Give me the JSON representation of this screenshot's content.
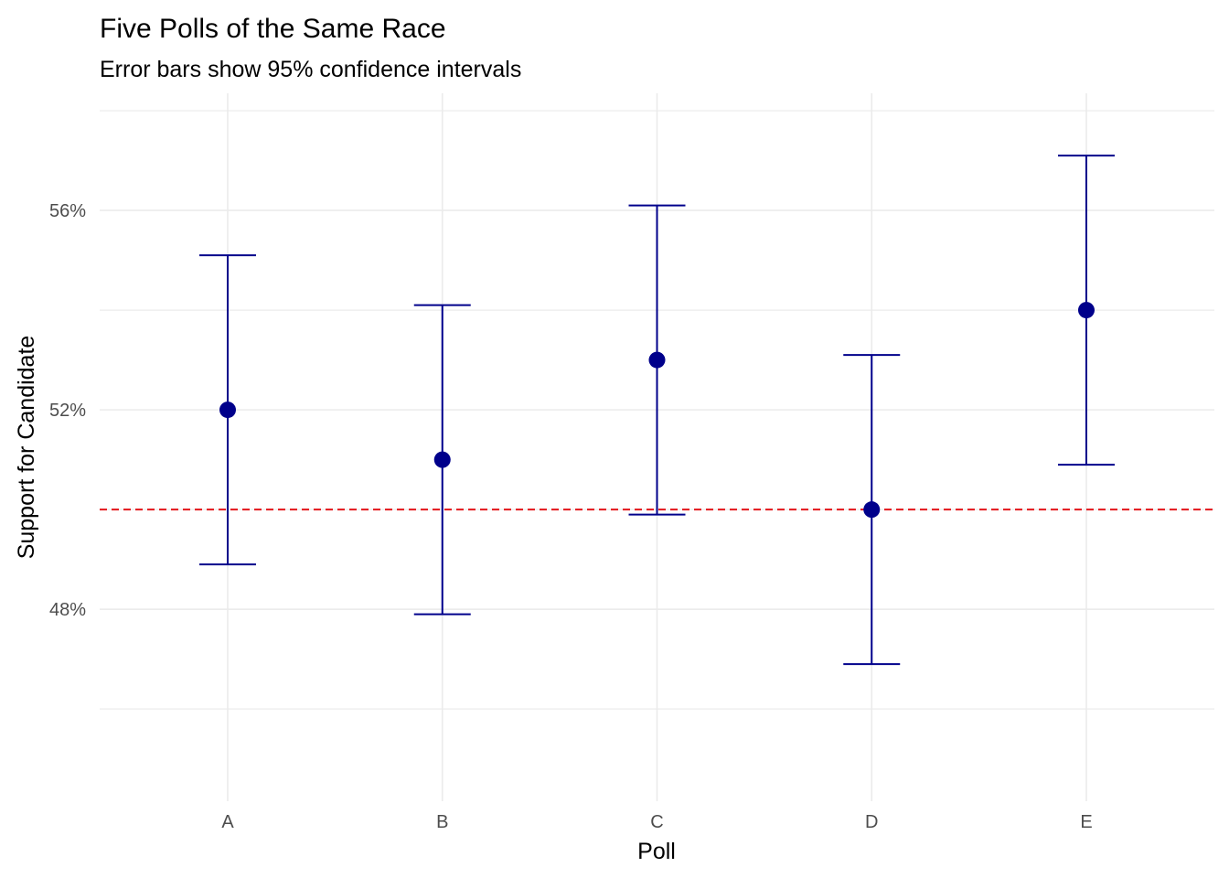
{
  "chart_data": {
    "type": "scatter",
    "title": "Five Polls of the Same Race",
    "subtitle": "Error bars show 95% confidence intervals",
    "xlabel": "Poll",
    "ylabel": "Support for Candidate",
    "categories": [
      "A",
      "B",
      "C",
      "D",
      "E"
    ],
    "series": [
      {
        "values": [
          52,
          51,
          53,
          50,
          54
        ],
        "ci_lower": [
          48.9,
          47.9,
          49.9,
          46.9,
          50.9
        ],
        "ci_upper": [
          55.1,
          54.1,
          56.1,
          53.1,
          57.1
        ]
      }
    ],
    "reference_line": {
      "y": 50,
      "style": "dashed",
      "color": "#e3151b"
    },
    "y_ticks": [
      48,
      52,
      56
    ],
    "y_tick_labels": [
      "48%",
      "52%",
      "56%"
    ],
    "ylim": [
      44.15,
      58.35
    ],
    "grid": true,
    "legend": "none",
    "colors": {
      "point": "#00008b",
      "errorbar": "#00008b",
      "reference": "#e3151b",
      "grid": "#ebebeb"
    }
  }
}
